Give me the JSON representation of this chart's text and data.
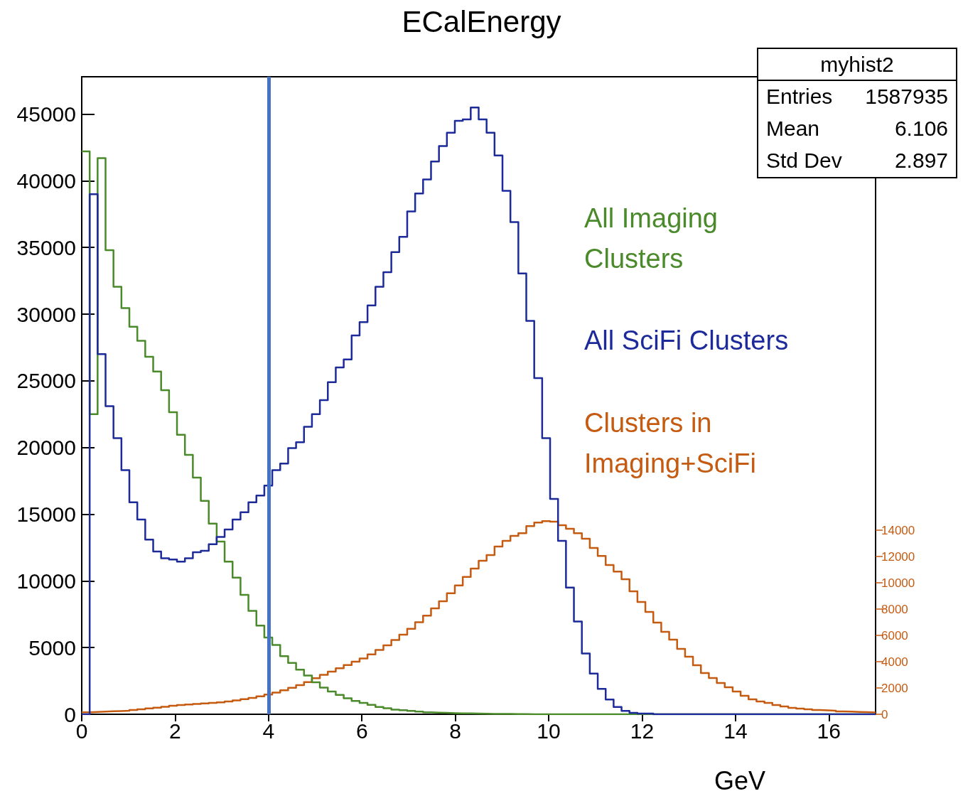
{
  "chart_data": {
    "type": "histogram",
    "title": "ECalEnergy",
    "xlabel": "GeV",
    "bins": [
      0,
      0.17,
      0.34,
      0.51,
      0.68,
      0.85,
      1.02,
      1.19,
      1.36,
      1.53,
      1.7,
      1.87,
      2.04,
      2.21,
      2.38,
      2.55,
      2.72,
      2.89,
      3.06,
      3.23,
      3.4,
      3.57,
      3.74,
      3.91,
      4.08,
      4.25,
      4.42,
      4.59,
      4.76,
      4.93,
      5.1,
      5.27,
      5.44,
      5.61,
      5.78,
      5.95,
      6.12,
      6.29,
      6.46,
      6.63,
      6.8,
      6.97,
      7.14,
      7.31,
      7.48,
      7.65,
      7.82,
      7.99,
      8.16,
      8.33,
      8.5,
      8.67,
      8.84,
      9.01,
      9.18,
      9.35,
      9.52,
      9.69,
      9.86,
      10.03,
      10.2,
      10.37,
      10.54,
      10.71,
      10.88,
      11.05,
      11.22,
      11.39,
      11.56,
      11.73,
      11.9,
      12.07,
      12.24,
      12.41,
      12.58,
      12.75,
      12.92,
      13.09,
      13.26,
      13.43,
      13.6,
      13.77,
      13.94,
      14.11,
      14.28,
      14.45,
      14.62,
      14.79,
      14.96,
      15.13,
      15.3,
      15.47,
      15.64,
      15.81,
      15.98,
      16.15,
      16.32,
      16.49,
      16.66,
      16.83,
      17
    ],
    "series": [
      {
        "name": "All Imaging Clusters",
        "color": "#4a8a2a",
        "values": [
          42200,
          22500,
          41700,
          34800,
          32050,
          30450,
          29050,
          28000,
          26800,
          25700,
          24300,
          22650,
          20950,
          19450,
          17750,
          16000,
          14300,
          12950,
          11450,
          10250,
          8950,
          7750,
          6650,
          5750,
          5200,
          4350,
          3850,
          3350,
          2900,
          2400,
          2000,
          1700,
          1450,
          1200,
          1000,
          850,
          700,
          550,
          450,
          350,
          300,
          250,
          200,
          150,
          120,
          100,
          80,
          70,
          60,
          50,
          40,
          30,
          20,
          20,
          10,
          10,
          0,
          0,
          0,
          0,
          0,
          0,
          0,
          0,
          0,
          0,
          0,
          0,
          0,
          0,
          0,
          0,
          0,
          0,
          0,
          0,
          0,
          0,
          0,
          0,
          0,
          0,
          0,
          0,
          0,
          0,
          0,
          0,
          0,
          0,
          0,
          0,
          0,
          0,
          0,
          0,
          0,
          0,
          0,
          0
        ]
      },
      {
        "name": "All SciFi Clusters",
        "color": "#1c2a9a",
        "values": [
          0,
          39000,
          27000,
          23100,
          20700,
          18300,
          15900,
          14600,
          13100,
          12200,
          11700,
          11600,
          11450,
          11700,
          12150,
          12250,
          12750,
          13300,
          13850,
          14600,
          15150,
          15900,
          16400,
          17150,
          18300,
          18800,
          19950,
          20400,
          21550,
          22500,
          23550,
          24900,
          26000,
          26600,
          28400,
          29400,
          30650,
          32050,
          33150,
          34650,
          35800,
          37700,
          39050,
          40100,
          41450,
          42600,
          43600,
          44500,
          44600,
          45500,
          44600,
          43600,
          41900,
          39250,
          36900,
          33050,
          29500,
          25200,
          20700,
          16150,
          13000,
          9500,
          6950,
          4550,
          3050,
          1900,
          1100,
          550,
          250,
          100,
          50,
          50,
          0,
          0,
          0,
          0,
          0,
          0,
          0,
          0,
          0,
          0,
          0,
          0,
          0,
          0,
          0,
          0,
          0,
          0,
          0,
          0,
          0,
          0,
          0,
          0,
          0,
          0,
          0,
          0
        ]
      },
      {
        "name": "Clusters in Imaging+SciFi",
        "color": "#c55a11",
        "axis": "y2",
        "values": [
          150,
          180,
          200,
          230,
          250,
          270,
          320,
          380,
          440,
          500,
          570,
          650,
          700,
          740,
          780,
          820,
          860,
          900,
          980,
          1060,
          1150,
          1250,
          1370,
          1500,
          1650,
          1830,
          2020,
          2220,
          2450,
          2750,
          3000,
          3250,
          3500,
          3750,
          4000,
          4250,
          4550,
          4900,
          5250,
          5650,
          6050,
          6500,
          7000,
          7500,
          8050,
          8600,
          9200,
          9800,
          10450,
          11080,
          11680,
          12110,
          12760,
          13190,
          13570,
          13780,
          14320,
          14590,
          14700,
          14650,
          14380,
          14110,
          13780,
          13350,
          12650,
          12050,
          11350,
          10860,
          10270,
          9350,
          8540,
          7780,
          6970,
          6270,
          5680,
          4970,
          4380,
          3730,
          3140,
          2760,
          2380,
          2050,
          1730,
          1410,
          1140,
          970,
          860,
          700,
          590,
          490,
          430,
          380,
          320,
          300,
          270,
          220,
          200,
          180,
          160,
          140
        ]
      }
    ],
    "xlim": [
      0,
      17
    ],
    "xticks": [
      0,
      2,
      4,
      6,
      8,
      10,
      12,
      14,
      16
    ],
    "ylim": [
      0,
      47800
    ],
    "yticks": [
      0,
      5000,
      10000,
      15000,
      20000,
      25000,
      30000,
      35000,
      40000,
      45000
    ],
    "y2lim": [
      0,
      48500
    ],
    "y2ticks": [
      0,
      2000,
      4000,
      6000,
      8000,
      10000,
      12000,
      14000
    ],
    "ref_lines": [
      {
        "axis": "x",
        "value": 4,
        "color": "#4472c4"
      }
    ],
    "annotations": [
      "myhist2",
      "Entries",
      "1587935",
      "Mean",
      "6.106",
      "Std Dev",
      "2.897"
    ]
  }
}
